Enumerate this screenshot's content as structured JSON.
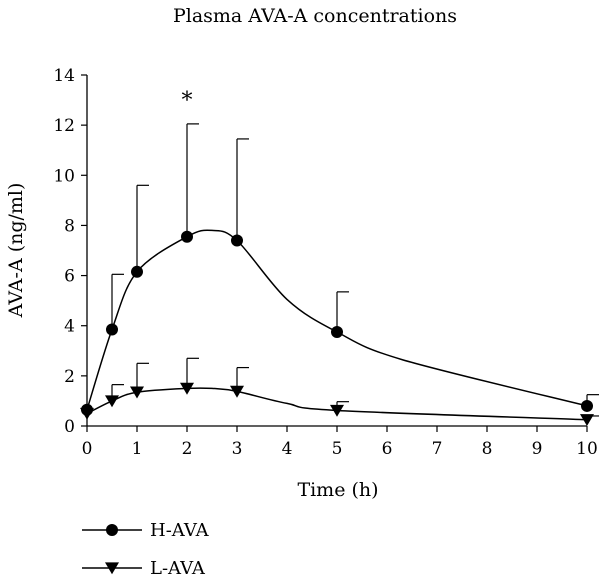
{
  "chart_data": {
    "type": "line",
    "title": "Plasma AVA-A concentrations",
    "xlabel": "Time (h)",
    "ylabel": "AVA-A (ng/ml)",
    "xlim": [
      0,
      10
    ],
    "ylim": [
      0,
      14
    ],
    "x_ticks": [
      "0",
      "1",
      "2",
      "3",
      "4",
      "5",
      "6",
      "7",
      "8",
      "9",
      "10"
    ],
    "y_ticks": [
      "0",
      "2",
      "4",
      "6",
      "8",
      "10",
      "12",
      "14"
    ],
    "grid": false,
    "legend_position": "bottom-left",
    "series": [
      {
        "name": "H-AVA",
        "marker": "circle",
        "x": [
          0,
          0.5,
          1,
          2,
          3,
          5,
          10
        ],
        "y": [
          0.65,
          3.85,
          6.15,
          7.55,
          7.4,
          3.75,
          0.8
        ],
        "error": [
          0,
          2.2,
          3.45,
          4.5,
          4.05,
          1.6,
          0.45
        ],
        "smooth_curve": [
          [
            0,
            0.65
          ],
          [
            0.5,
            3.85
          ],
          [
            1,
            6.15
          ],
          [
            2,
            7.55
          ],
          [
            2.5,
            7.8
          ],
          [
            3,
            7.4
          ],
          [
            4,
            5.05
          ],
          [
            5,
            3.75
          ],
          [
            6.3,
            2.65
          ],
          [
            10,
            0.8
          ]
        ]
      },
      {
        "name": "L-AVA",
        "marker": "triangle-down",
        "x": [
          0,
          0.5,
          1,
          2,
          3,
          5,
          10
        ],
        "y": [
          0.5,
          1.0,
          1.35,
          1.5,
          1.38,
          0.62,
          0.25
        ],
        "error": [
          0,
          0.65,
          1.15,
          1.2,
          0.95,
          0.35,
          0.15
        ],
        "smooth_curve": [
          [
            0,
            0.5
          ],
          [
            0.5,
            1.0
          ],
          [
            1,
            1.35
          ],
          [
            2,
            1.5
          ],
          [
            2.5,
            1.5
          ],
          [
            3,
            1.38
          ],
          [
            4,
            0.9
          ],
          [
            5,
            0.62
          ],
          [
            10,
            0.25
          ]
        ]
      }
    ],
    "annotations": [
      {
        "text": "*",
        "x": 2,
        "y": 12.7
      }
    ]
  }
}
